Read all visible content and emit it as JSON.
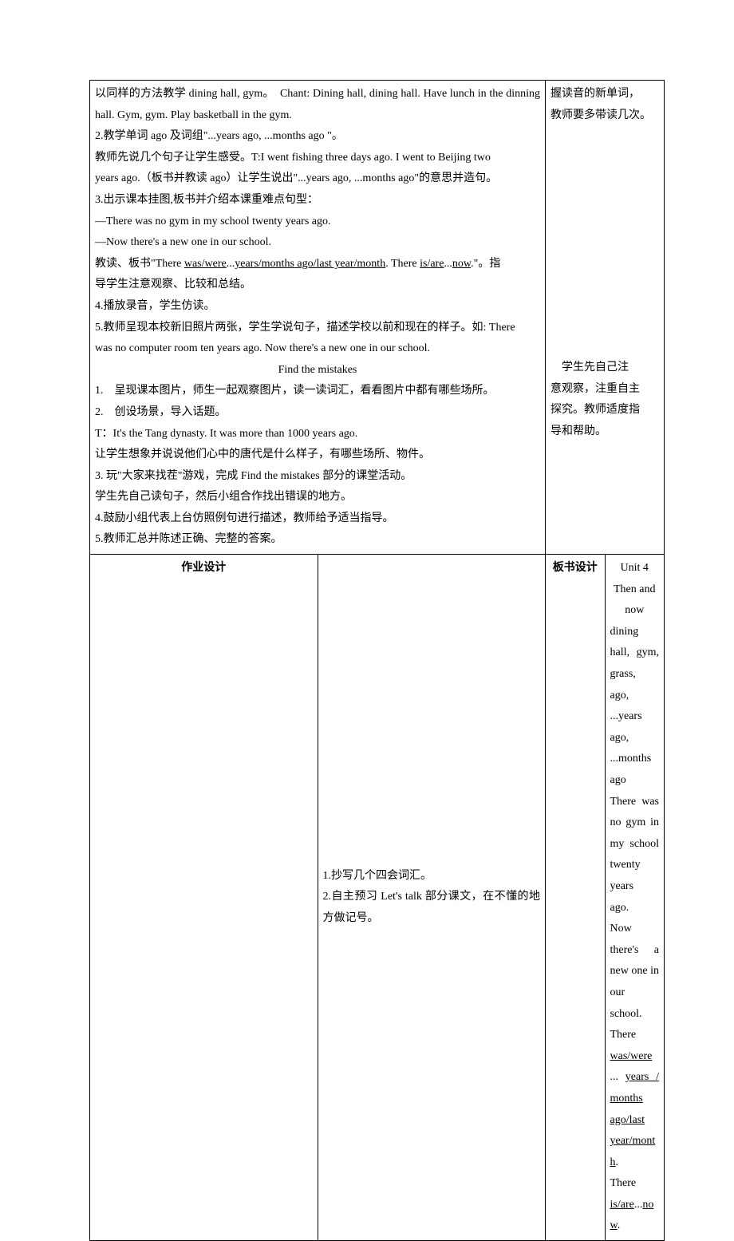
{
  "main": {
    "p1": "以同样的方法教学 dining hall, gym。　Chant: Dining hall, dining hall. Have lunch in the dinning hall. Gym, gym. Play basketball in the gym.",
    "p2": "2.教学单词 ago 及词组\"...years ago, ...months ago \"。",
    "p3": "教师先说几个句子让学生感受。T:I went fishing three days ago. I went to Beijing two",
    "p4": "years ago.（板书并教读 ago）让学生说出\"...years ago, ...months ago\"的意思并造句。",
    "p5": "3.出示课本挂图,板书并介绍本课重难点句型：",
    "p6": "—There was no gym in my school twenty years ago.",
    "p7": "—Now there's a new one in our school.",
    "p8a": "教读、板书\"There ",
    "p8u1": "was/were",
    "p8b": "...",
    "p8u2": "years/months ago/last year/month",
    "p8c": ". There ",
    "p8u3": "is/are",
    "p8d": "...",
    "p8u4": "now",
    "p8e": ".\"。指",
    "p9": "导学生注意观察、比较和总结。",
    "p10": "4.播放录音，学生仿读。",
    "p11": "5.教师呈现本校新旧照片两张，学生学说句子，描述学校以前和现在的样子。如: There",
    "p12": "was no computer room ten years ago. Now there's a new one in our school.",
    "p13": "Find the mistakes",
    "p14": "1.　呈现课本图片，师生一起观察图片，读一读词汇，看看图片中都有哪些场所。",
    "p15": "2.　创设场景，导入话题。",
    "p16": "T：It's the Tang dynasty. It was more than 1000 years ago.",
    "p17": "让学生想象并说说他们心中的唐代是什么样子，有哪些场所、物件。",
    "p18": "3. 玩\"大家来找茬\"游戏，完成 Find the mistakes 部分的课堂活动。",
    "p19": "学生先自己读句子，然后小组合作找出错误的地方。",
    "p20": "4.鼓励小组代表上台仿照例句进行描述，教师给予适当指导。",
    "p21": "5.教师汇总并陈述正确、完整的答案。"
  },
  "side": {
    "n1a": "握读音的新单词，",
    "n1b": "教师要多带读几次。",
    "n2a": "学生先自己注",
    "n2b": "意观察，注重自主",
    "n2c": "探究。教师适度指",
    "n2d": "导和帮助。"
  },
  "hw": {
    "label": "作业设计",
    "l1": "1.抄写几个四会词汇。",
    "l2": "2.自主预习 Let's talk 部分课文，在不懂的地方做记号。"
  },
  "bb": {
    "label": "板书设计",
    "title": "Unit 4 Then and now",
    "l1": "dining   hall,   gym,   grass,   ago,   ...years ago, ...months ago",
    "l2": "There was no gym in my school twenty years",
    "l3": "ago.",
    "l4": "Now there's a new one in our school.",
    "l5a": "There ",
    "l5u1": "was/were",
    "l5b": "  ...  ",
    "l5u2": "years  /  months  ago/last year/month",
    "l5c": ".",
    "l6a": "There ",
    "l6u1": "is/are",
    "l6b": "...",
    "l6u2": "now",
    "l6c": "."
  }
}
